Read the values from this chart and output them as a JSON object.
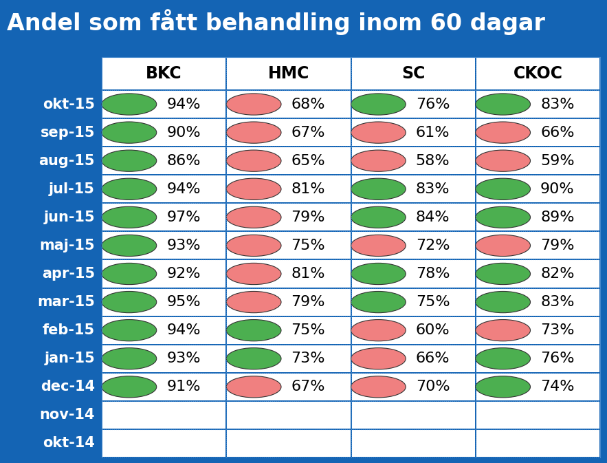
{
  "title": "Andel som fått behandling inom 60 dagar",
  "columns": [
    "BKC",
    "HMC",
    "SC",
    "CKOC"
  ],
  "rows": [
    "okt-15",
    "sep-15",
    "aug-15",
    "jul-15",
    "jun-15",
    "maj-15",
    "apr-15",
    "mar-15",
    "feb-15",
    "jan-15",
    "dec-14",
    "nov-14",
    "okt-14"
  ],
  "data": {
    "okt-15": {
      "BKC": [
        94,
        "green"
      ],
      "HMC": [
        68,
        "red"
      ],
      "SC": [
        76,
        "green"
      ],
      "CKOC": [
        83,
        "green"
      ]
    },
    "sep-15": {
      "BKC": [
        90,
        "green"
      ],
      "HMC": [
        67,
        "red"
      ],
      "SC": [
        61,
        "red"
      ],
      "CKOC": [
        66,
        "red"
      ]
    },
    "aug-15": {
      "BKC": [
        86,
        "green"
      ],
      "HMC": [
        65,
        "red"
      ],
      "SC": [
        58,
        "red"
      ],
      "CKOC": [
        59,
        "red"
      ]
    },
    "jul-15": {
      "BKC": [
        94,
        "green"
      ],
      "HMC": [
        81,
        "red"
      ],
      "SC": [
        83,
        "green"
      ],
      "CKOC": [
        90,
        "green"
      ]
    },
    "jun-15": {
      "BKC": [
        97,
        "green"
      ],
      "HMC": [
        79,
        "red"
      ],
      "SC": [
        84,
        "green"
      ],
      "CKOC": [
        89,
        "green"
      ]
    },
    "maj-15": {
      "BKC": [
        93,
        "green"
      ],
      "HMC": [
        75,
        "red"
      ],
      "SC": [
        72,
        "red"
      ],
      "CKOC": [
        79,
        "red"
      ]
    },
    "apr-15": {
      "BKC": [
        92,
        "green"
      ],
      "HMC": [
        81,
        "red"
      ],
      "SC": [
        78,
        "green"
      ],
      "CKOC": [
        82,
        "green"
      ]
    },
    "mar-15": {
      "BKC": [
        95,
        "green"
      ],
      "HMC": [
        79,
        "red"
      ],
      "SC": [
        75,
        "green"
      ],
      "CKOC": [
        83,
        "green"
      ]
    },
    "feb-15": {
      "BKC": [
        94,
        "green"
      ],
      "HMC": [
        75,
        "green"
      ],
      "SC": [
        60,
        "red"
      ],
      "CKOC": [
        73,
        "red"
      ]
    },
    "jan-15": {
      "BKC": [
        93,
        "green"
      ],
      "HMC": [
        73,
        "green"
      ],
      "SC": [
        66,
        "red"
      ],
      "CKOC": [
        76,
        "green"
      ]
    },
    "dec-14": {
      "BKC": [
        91,
        "green"
      ],
      "HMC": [
        67,
        "red"
      ],
      "SC": [
        70,
        "red"
      ],
      "CKOC": [
        74,
        "green"
      ]
    },
    "nov-14": {},
    "okt-14": {}
  },
  "bg_color": "#1464B4",
  "cell_bg_color": "#FFFFFF",
  "header_bg_color": "#FFFFFF",
  "text_color_white": "#FFFFFF",
  "text_color_black": "#000000",
  "green_color": "#4CAF50",
  "red_color": "#F08080",
  "title_fontsize": 24,
  "header_fontsize": 17,
  "row_label_fontsize": 15,
  "cell_fontsize": 16
}
